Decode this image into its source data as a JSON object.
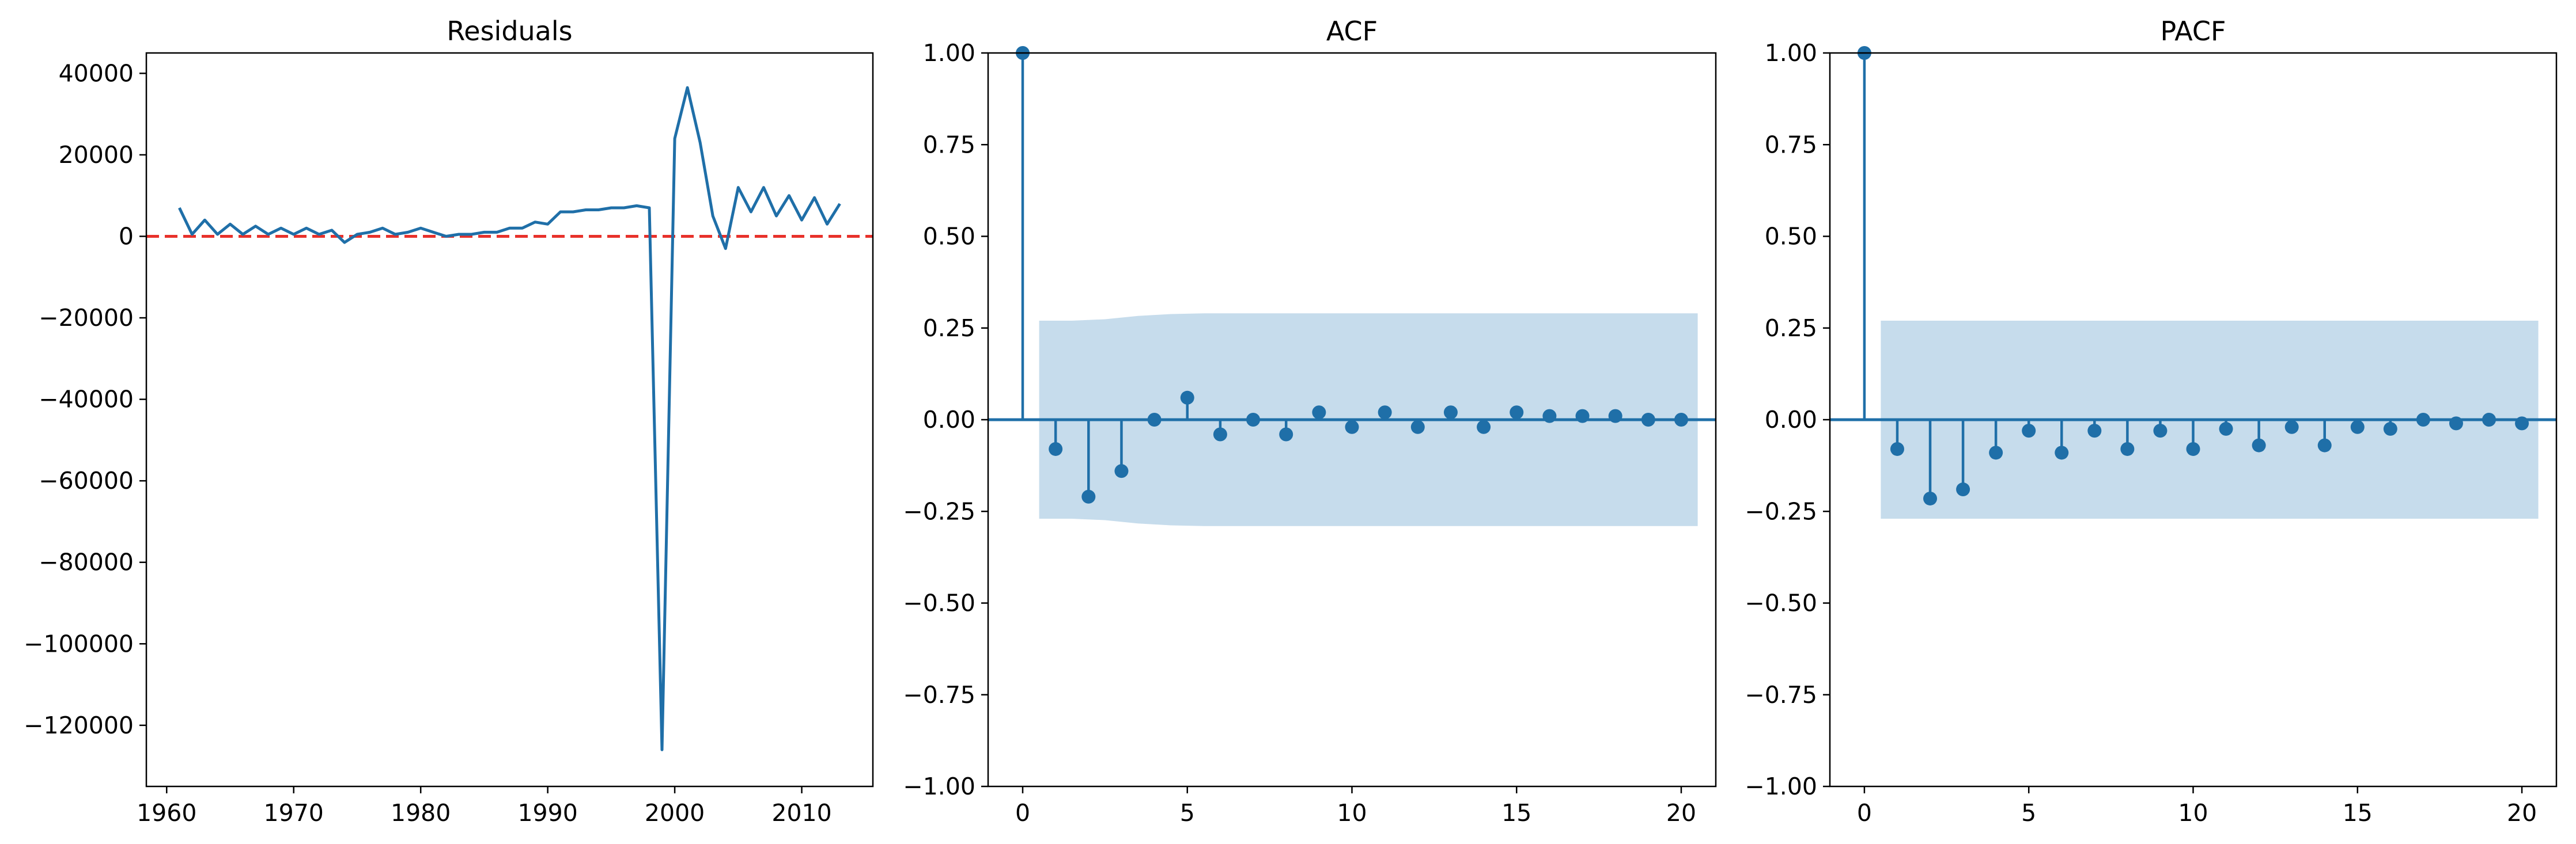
{
  "chart_data": [
    {
      "type": "line",
      "title": "Residuals",
      "xlabel": "",
      "ylabel": "",
      "xlim": [
        1958.4,
        2015.6
      ],
      "ylim": [
        -135000,
        45000
      ],
      "xticks": [
        1960,
        1970,
        1980,
        1990,
        2000,
        2010
      ],
      "yticks": [
        40000,
        20000,
        0,
        -20000,
        -40000,
        -60000,
        -80000,
        -100000,
        -120000
      ],
      "reference_line": {
        "y": 0,
        "color": "#e8312a",
        "style": "dashed"
      },
      "series": [
        {
          "color": "#1f6fa8",
          "x": [
            1961,
            1962,
            1963,
            1964,
            1965,
            1966,
            1967,
            1968,
            1969,
            1970,
            1971,
            1972,
            1973,
            1974,
            1975,
            1976,
            1977,
            1978,
            1979,
            1980,
            1981,
            1982,
            1983,
            1984,
            1985,
            1986,
            1987,
            1988,
            1989,
            1990,
            1991,
            1992,
            1993,
            1994,
            1995,
            1996,
            1997,
            1998,
            1999,
            2000,
            2001,
            2002,
            2003,
            2004,
            2005,
            2006,
            2007,
            2008,
            2009,
            2010,
            2011,
            2012,
            2013
          ],
          "y": [
            7000,
            500,
            4000,
            500,
            3000,
            500,
            2500,
            500,
            2000,
            500,
            2000,
            500,
            1500,
            -1500,
            500,
            1000,
            2000,
            500,
            1000,
            2000,
            1000,
            0,
            500,
            500,
            1000,
            1000,
            2000,
            2000,
            3500,
            3000,
            6000,
            6000,
            6500,
            6500,
            7000,
            7000,
            7500,
            7000,
            -126000,
            24000,
            36500,
            23000,
            5000,
            -3000,
            12000,
            6000,
            12000,
            5000,
            10000,
            4000,
            9500,
            3000,
            8000
          ]
        }
      ]
    },
    {
      "type": "stem",
      "title": "ACF",
      "xlabel": "",
      "ylabel": "",
      "xlim": [
        -1.05,
        21.05
      ],
      "ylim": [
        -1.0,
        1.0
      ],
      "xticks": [
        0,
        5,
        10,
        15,
        20
      ],
      "yticks": [
        1.0,
        0.75,
        0.5,
        0.25,
        0.0,
        -0.25,
        -0.5,
        -0.75,
        -1.0
      ],
      "ytick_labels": [
        "1.00",
        "0.75",
        "0.50",
        "0.25",
        "0.00",
        "−0.25",
        "−0.50",
        "−0.75",
        "−1.00"
      ],
      "lags": [
        0,
        1,
        2,
        3,
        4,
        5,
        6,
        7,
        8,
        9,
        10,
        11,
        12,
        13,
        14,
        15,
        16,
        17,
        18,
        19,
        20
      ],
      "values": [
        1.0,
        -0.08,
        -0.21,
        -0.14,
        0.0,
        0.06,
        -0.04,
        0.0,
        -0.04,
        0.02,
        -0.02,
        0.02,
        -0.02,
        0.02,
        -0.02,
        0.02,
        0.01,
        0.01,
        0.01,
        0.0,
        0.0
      ],
      "confint_upper": [
        0.27,
        0.27,
        0.274,
        0.283,
        0.288,
        0.29,
        0.29,
        0.29,
        0.29,
        0.29,
        0.29,
        0.29,
        0.29,
        0.29,
        0.29,
        0.29,
        0.29,
        0.29,
        0.29,
        0.29,
        0.29
      ],
      "confint_x_range": [
        0.5,
        20.5
      ],
      "color": "#1f6fa8",
      "band_color": "#c6dcec"
    },
    {
      "type": "stem",
      "title": "PACF",
      "xlabel": "",
      "ylabel": "",
      "xlim": [
        -1.05,
        21.05
      ],
      "ylim": [
        -1.0,
        1.0
      ],
      "xticks": [
        0,
        5,
        10,
        15,
        20
      ],
      "yticks": [
        1.0,
        0.75,
        0.5,
        0.25,
        0.0,
        -0.25,
        -0.5,
        -0.75,
        -1.0
      ],
      "ytick_labels": [
        "1.00",
        "0.75",
        "0.50",
        "0.25",
        "0.00",
        "−0.25",
        "−0.50",
        "−0.75",
        "−1.00"
      ],
      "lags": [
        0,
        1,
        2,
        3,
        4,
        5,
        6,
        7,
        8,
        9,
        10,
        11,
        12,
        13,
        14,
        15,
        16,
        17,
        18,
        19,
        20
      ],
      "values": [
        1.0,
        -0.08,
        -0.215,
        -0.19,
        -0.09,
        -0.03,
        -0.09,
        -0.03,
        -0.08,
        -0.03,
        -0.08,
        -0.025,
        -0.07,
        -0.02,
        -0.07,
        -0.02,
        -0.025,
        0.0,
        -0.01,
        0.0,
        -0.01
      ],
      "confint_upper": [
        0.27,
        0.27,
        0.27,
        0.27,
        0.27,
        0.27,
        0.27,
        0.27,
        0.27,
        0.27,
        0.27,
        0.27,
        0.27,
        0.27,
        0.27,
        0.27,
        0.27,
        0.27,
        0.27,
        0.27,
        0.27
      ],
      "confint_x_range": [
        0.5,
        20.5
      ],
      "color": "#1f6fa8",
      "band_color": "#c6dcec"
    }
  ]
}
